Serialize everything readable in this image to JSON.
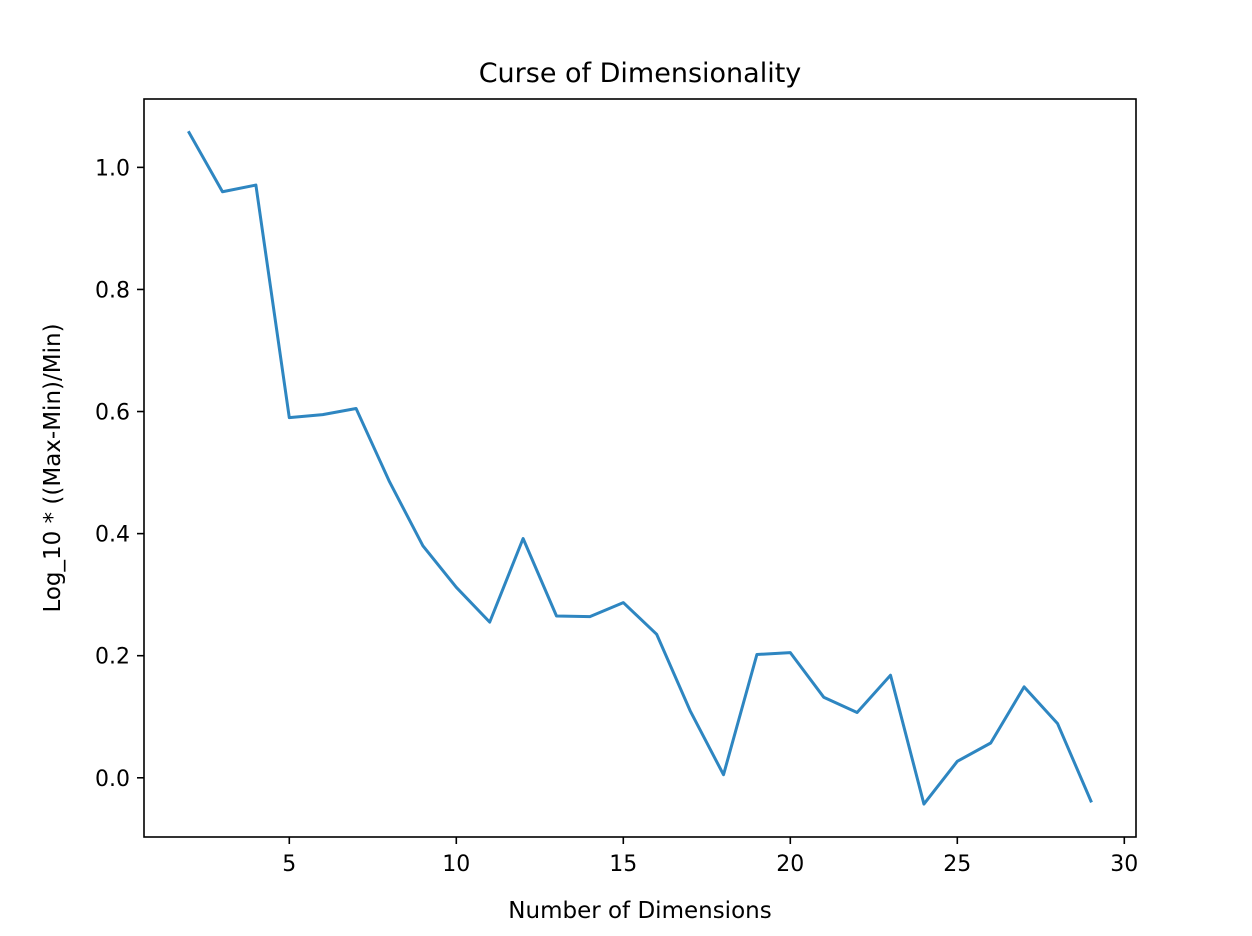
{
  "chart_data": {
    "type": "line",
    "title": "Curse of Dimensionality",
    "xlabel": "Number of Dimensions",
    "ylabel": "Log_10 * ((Max-Min)/Min)",
    "xlim": [
      0.65,
      30.35
    ],
    "ylim": [
      -0.097,
      1.112
    ],
    "x_ticks": [
      5,
      10,
      15,
      20,
      25,
      30
    ],
    "x_tick_labels": [
      "5",
      "10",
      "15",
      "20",
      "25",
      "30"
    ],
    "y_ticks": [
      0.0,
      0.2,
      0.4,
      0.6,
      0.8,
      1.0
    ],
    "y_tick_labels": [
      "0.0",
      "0.2",
      "0.4",
      "0.6",
      "0.8",
      "1.0"
    ],
    "grid": false,
    "series": [
      {
        "color": "#2e86c1",
        "x": [
          2,
          3,
          4,
          5,
          6,
          7,
          8,
          9,
          10,
          11,
          12,
          13,
          14,
          15,
          16,
          17,
          18,
          19,
          20,
          21,
          22,
          23,
          24,
          25,
          26,
          27,
          28,
          29
        ],
        "y": [
          1.057,
          0.96,
          0.971,
          0.59,
          0.595,
          0.605,
          0.485,
          0.38,
          0.312,
          0.255,
          0.392,
          0.265,
          0.264,
          0.287,
          0.235,
          0.11,
          0.005,
          0.202,
          0.205,
          0.132,
          0.107,
          0.168,
          -0.043,
          0.027,
          0.057,
          0.149,
          0.089,
          -0.038
        ]
      }
    ]
  }
}
